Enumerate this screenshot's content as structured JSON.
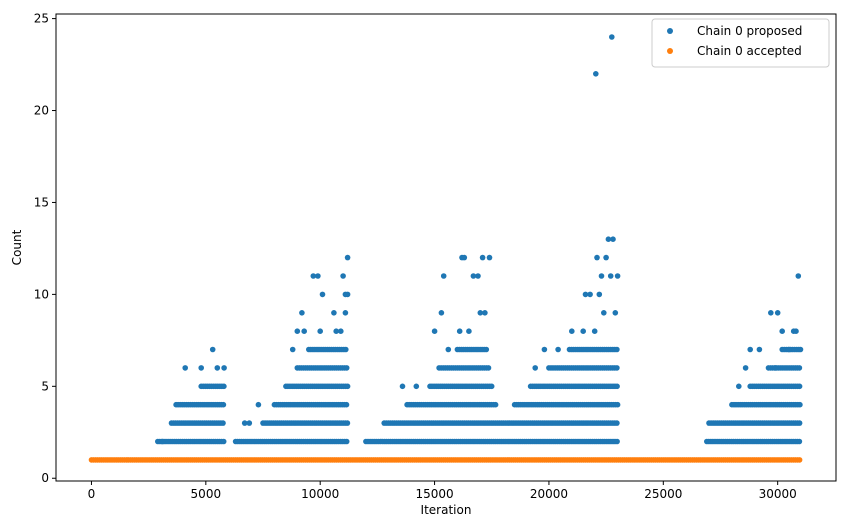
{
  "chart_data": {
    "type": "scatter",
    "title": "",
    "xlabel": "Iteration",
    "ylabel": "Count",
    "xlim": [
      -1550,
      32550
    ],
    "ylim": [
      -0.15,
      25.25
    ],
    "xticks": [
      0,
      5000,
      10000,
      15000,
      20000,
      25000,
      30000
    ],
    "yticks": [
      0,
      5,
      10,
      15,
      20,
      25
    ],
    "grid": false,
    "legend_position": "top-right",
    "series": [
      {
        "name": "Chain 0 proposed",
        "color": "#1f77b4",
        "marker": "circle",
        "bands": [
          {
            "x_start": 2900,
            "x_end": 5800,
            "value": 2
          },
          {
            "x_start": 6300,
            "x_end": 11200,
            "value": 2
          },
          {
            "x_start": 12000,
            "x_end": 23000,
            "value": 2
          },
          {
            "x_start": 26900,
            "x_end": 31000,
            "value": 2
          },
          {
            "x_start": 3500,
            "x_end": 5800,
            "value": 3
          },
          {
            "x_start": 7500,
            "x_end": 11200,
            "value": 3
          },
          {
            "x_start": 12800,
            "x_end": 23000,
            "value": 3
          },
          {
            "x_start": 27000,
            "x_end": 31000,
            "value": 3
          },
          {
            "x_start": 3700,
            "x_end": 5800,
            "value": 4
          },
          {
            "x_start": 8000,
            "x_end": 11200,
            "value": 4
          },
          {
            "x_start": 13800,
            "x_end": 17700,
            "value": 4
          },
          {
            "x_start": 18500,
            "x_end": 23000,
            "value": 4
          },
          {
            "x_start": 28000,
            "x_end": 31000,
            "value": 4
          },
          {
            "x_start": 4800,
            "x_end": 5800,
            "value": 5
          },
          {
            "x_start": 8500,
            "x_end": 11200,
            "value": 5
          },
          {
            "x_start": 14800,
            "x_end": 17500,
            "value": 5
          },
          {
            "x_start": 19200,
            "x_end": 23000,
            "value": 5
          },
          {
            "x_start": 28800,
            "x_end": 31000,
            "value": 5
          },
          {
            "x_start": 9000,
            "x_end": 11200,
            "value": 6
          },
          {
            "x_start": 15200,
            "x_end": 17400,
            "value": 6
          },
          {
            "x_start": 20000,
            "x_end": 23000,
            "value": 6
          },
          {
            "x_start": 29600,
            "x_end": 31000,
            "value": 6
          },
          {
            "x_start": 9500,
            "x_end": 11200,
            "value": 7
          },
          {
            "x_start": 16000,
            "x_end": 17300,
            "value": 7
          },
          {
            "x_start": 20900,
            "x_end": 23000,
            "value": 7
          },
          {
            "x_start": 30200,
            "x_end": 31000,
            "value": 7
          }
        ],
        "points": [
          [
            3100,
            2
          ],
          [
            4100,
            6
          ],
          [
            4800,
            6
          ],
          [
            5300,
            7
          ],
          [
            5500,
            6
          ],
          [
            5800,
            6
          ],
          [
            6700,
            3
          ],
          [
            6900,
            3
          ],
          [
            7300,
            4
          ],
          [
            8800,
            7
          ],
          [
            9000,
            8
          ],
          [
            9200,
            9
          ],
          [
            9300,
            8
          ],
          [
            9700,
            11
          ],
          [
            9900,
            11
          ],
          [
            10000,
            8
          ],
          [
            10100,
            10
          ],
          [
            10600,
            9
          ],
          [
            10700,
            8
          ],
          [
            10900,
            8
          ],
          [
            11000,
            11
          ],
          [
            11100,
            9
          ],
          [
            11200,
            12
          ],
          [
            11100,
            10
          ],
          [
            11200,
            10
          ],
          [
            13600,
            5
          ],
          [
            14200,
            5
          ],
          [
            15000,
            8
          ],
          [
            15300,
            9
          ],
          [
            15400,
            11
          ],
          [
            15600,
            7
          ],
          [
            16100,
            8
          ],
          [
            16200,
            12
          ],
          [
            16300,
            12
          ],
          [
            16500,
            8
          ],
          [
            16700,
            11
          ],
          [
            16900,
            11
          ],
          [
            17000,
            9
          ],
          [
            17100,
            12
          ],
          [
            17200,
            9
          ],
          [
            17400,
            12
          ],
          [
            19400,
            6
          ],
          [
            19800,
            7
          ],
          [
            20400,
            7
          ],
          [
            21000,
            8
          ],
          [
            21500,
            8
          ],
          [
            21600,
            10
          ],
          [
            21800,
            10
          ],
          [
            22000,
            8
          ],
          [
            22100,
            12
          ],
          [
            22200,
            10
          ],
          [
            22300,
            11
          ],
          [
            22400,
            9
          ],
          [
            22500,
            12
          ],
          [
            22600,
            13
          ],
          [
            22700,
            11
          ],
          [
            22800,
            13
          ],
          [
            22900,
            9
          ],
          [
            23000,
            11
          ],
          [
            22050,
            22
          ],
          [
            22750,
            24
          ],
          [
            28300,
            5
          ],
          [
            28600,
            6
          ],
          [
            28800,
            7
          ],
          [
            29200,
            7
          ],
          [
            29700,
            9
          ],
          [
            29900,
            6
          ],
          [
            30000,
            9
          ],
          [
            30200,
            8
          ],
          [
            30500,
            7
          ],
          [
            30700,
            8
          ],
          [
            30800,
            8
          ],
          [
            30900,
            11
          ],
          [
            31000,
            7
          ]
        ]
      },
      {
        "name": "Chain 0 accepted",
        "color": "#ff7f0e",
        "marker": "circle",
        "bands": [
          {
            "x_start": 0,
            "x_end": 31000,
            "value": 1
          }
        ],
        "points": []
      }
    ]
  }
}
